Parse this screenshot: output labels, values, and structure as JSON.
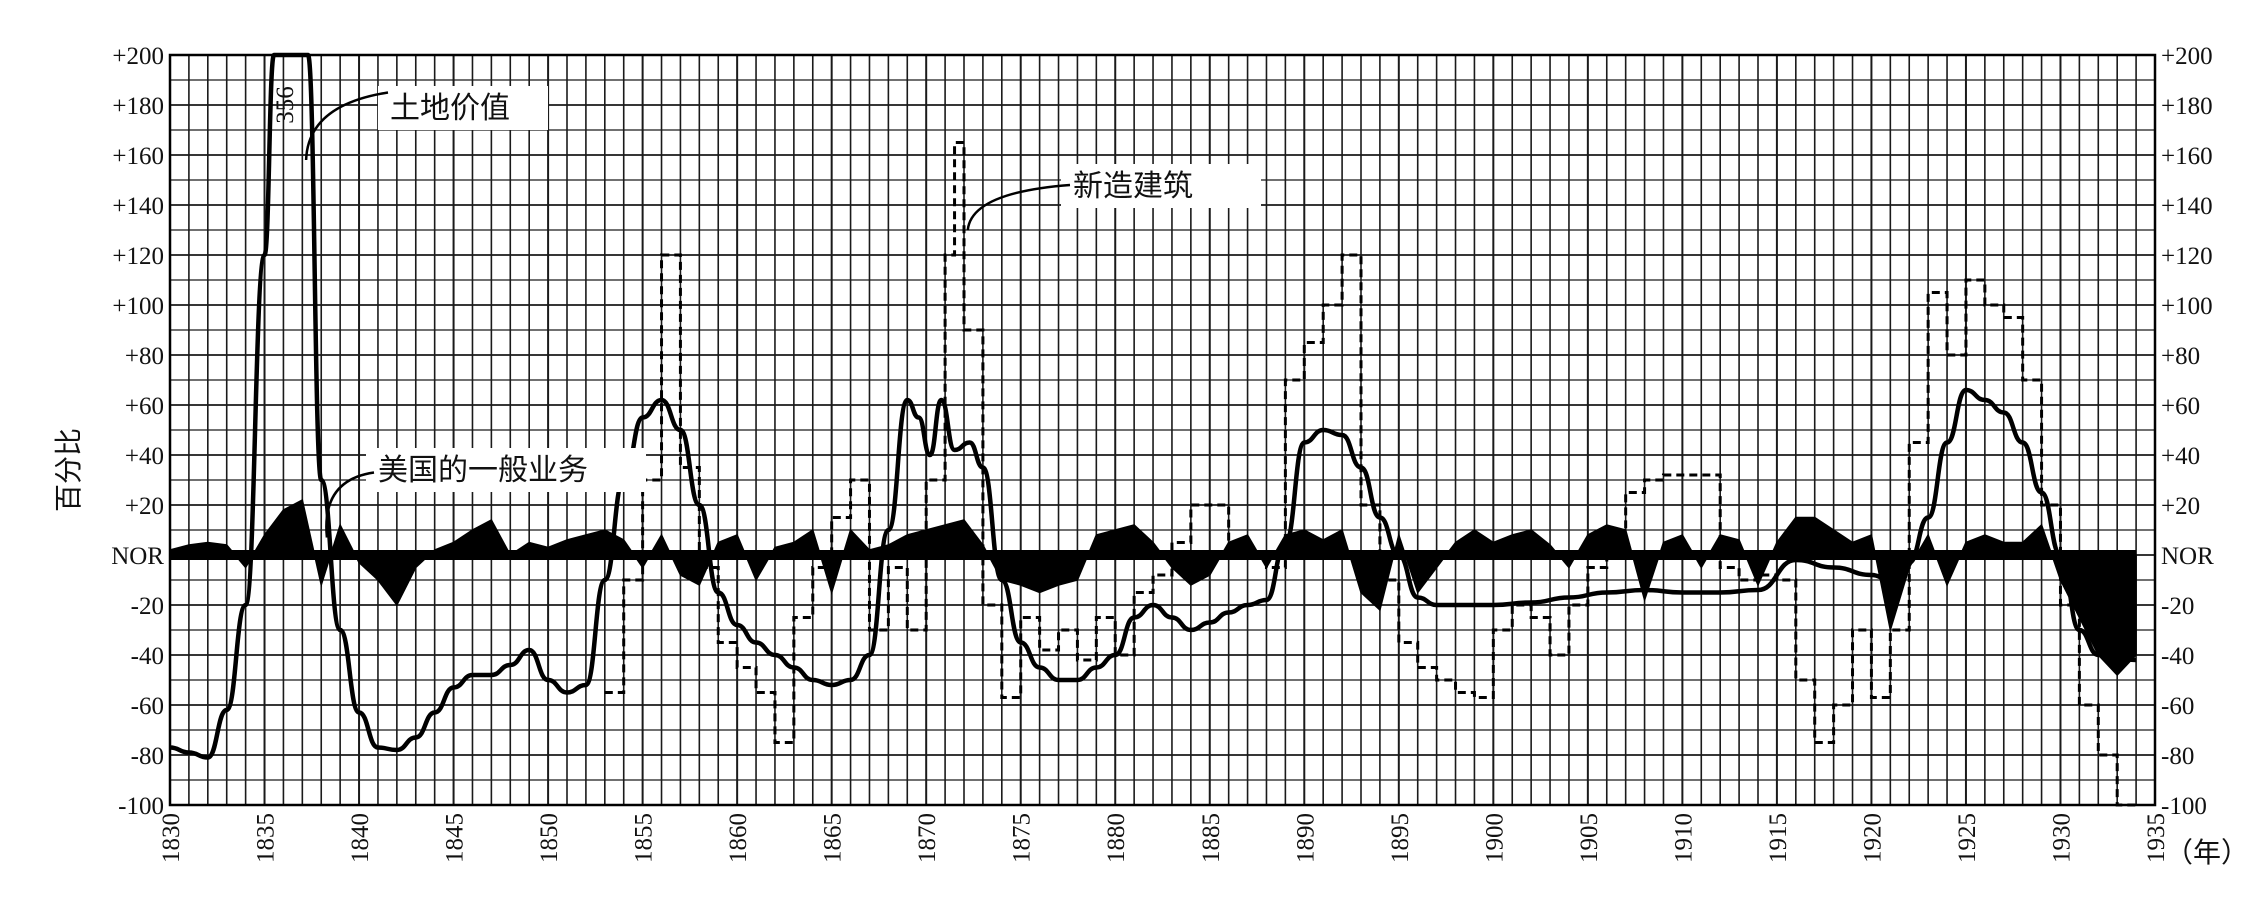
{
  "chart_data": {
    "type": "line",
    "xlabel": "（年）",
    "ylabel": "百分比",
    "xlim": [
      1830,
      1935
    ],
    "ylim": [
      -100,
      200
    ],
    "grid": true,
    "legend": "none",
    "x_ticks": [
      1830,
      1835,
      1840,
      1845,
      1850,
      1855,
      1860,
      1865,
      1870,
      1875,
      1880,
      1885,
      1890,
      1895,
      1900,
      1905,
      1910,
      1915,
      1920,
      1925,
      1930,
      1935
    ],
    "y_ticks": [
      {
        "v": 200,
        "t": "+200"
      },
      {
        "v": 180,
        "t": "+180"
      },
      {
        "v": 160,
        "t": "+160"
      },
      {
        "v": 140,
        "t": "+140"
      },
      {
        "v": 120,
        "t": "+120"
      },
      {
        "v": 100,
        "t": "+100"
      },
      {
        "v": 80,
        "t": "+80"
      },
      {
        "v": 60,
        "t": "+60"
      },
      {
        "v": 40,
        "t": "+40"
      },
      {
        "v": 20,
        "t": "+20"
      },
      {
        "v": 0,
        "t": "NOR"
      },
      {
        "v": -20,
        "t": "-20"
      },
      {
        "v": -40,
        "t": "-40"
      },
      {
        "v": -60,
        "t": "-60"
      },
      {
        "v": -80,
        "t": "-80"
      },
      {
        "v": -100,
        "t": "-100"
      }
    ],
    "annotations": [
      {
        "text": "土地价值",
        "series": "land"
      },
      {
        "text": "新造建筑",
        "series": "construction"
      },
      {
        "text": "美国的一般业务",
        "series": "business"
      }
    ],
    "peak_label": "356",
    "series": [
      {
        "name": "土地价值",
        "style": "solid",
        "points": [
          [
            1830,
            -77
          ],
          [
            1831,
            -79
          ],
          [
            1832,
            -81
          ],
          [
            1833,
            -62
          ],
          [
            1834,
            -20
          ],
          [
            1835,
            120
          ],
          [
            1835.5,
            200
          ],
          [
            1837.3,
            200
          ],
          [
            1838,
            30
          ],
          [
            1839,
            -30
          ],
          [
            1840,
            -63
          ],
          [
            1841,
            -77
          ],
          [
            1842,
            -78
          ],
          [
            1843,
            -73
          ],
          [
            1844,
            -63
          ],
          [
            1845,
            -53
          ],
          [
            1846,
            -48
          ],
          [
            1847,
            -48
          ],
          [
            1848,
            -44
          ],
          [
            1849,
            -38
          ],
          [
            1850,
            -50
          ],
          [
            1851,
            -55
          ],
          [
            1852,
            -52
          ],
          [
            1853,
            -10
          ],
          [
            1854,
            30
          ],
          [
            1855,
            55
          ],
          [
            1856,
            62
          ],
          [
            1857,
            50
          ],
          [
            1858,
            20
          ],
          [
            1859,
            -15
          ],
          [
            1860,
            -28
          ],
          [
            1861,
            -35
          ],
          [
            1862,
            -40
          ],
          [
            1863,
            -45
          ],
          [
            1864,
            -50
          ],
          [
            1865,
            -52
          ],
          [
            1866,
            -50
          ],
          [
            1867,
            -40
          ],
          [
            1868,
            10
          ],
          [
            1869,
            62
          ],
          [
            1869.6,
            55
          ],
          [
            1870.2,
            40
          ],
          [
            1870.8,
            62
          ],
          [
            1871.5,
            42
          ],
          [
            1872.3,
            45
          ],
          [
            1873,
            35
          ],
          [
            1874,
            -10
          ],
          [
            1875,
            -35
          ],
          [
            1876,
            -45
          ],
          [
            1877,
            -50
          ],
          [
            1878,
            -50
          ],
          [
            1879,
            -45
          ],
          [
            1880,
            -40
          ],
          [
            1881,
            -25
          ],
          [
            1882,
            -20
          ],
          [
            1883,
            -25
          ],
          [
            1884,
            -30
          ],
          [
            1885,
            -27
          ],
          [
            1886,
            -23
          ],
          [
            1887,
            -20
          ],
          [
            1888,
            -18
          ],
          [
            1889,
            5
          ],
          [
            1890,
            45
          ],
          [
            1891,
            50
          ],
          [
            1892,
            48
          ],
          [
            1893,
            35
          ],
          [
            1894,
            15
          ],
          [
            1895,
            0
          ],
          [
            1896,
            -17
          ],
          [
            1897,
            -20
          ],
          [
            1898,
            -20
          ],
          [
            1900,
            -20
          ],
          [
            1902,
            -19
          ],
          [
            1904,
            -17
          ],
          [
            1906,
            -15
          ],
          [
            1908,
            -14
          ],
          [
            1910,
            -15
          ],
          [
            1912,
            -15
          ],
          [
            1914,
            -14
          ],
          [
            1916,
            -2
          ],
          [
            1918,
            -5
          ],
          [
            1920,
            -8
          ],
          [
            1921,
            -10
          ],
          [
            1922,
            -3
          ],
          [
            1923,
            15
          ],
          [
            1924,
            45
          ],
          [
            1925,
            66
          ],
          [
            1926,
            62
          ],
          [
            1927,
            57
          ],
          [
            1928,
            45
          ],
          [
            1929,
            25
          ],
          [
            1930,
            0
          ],
          [
            1931,
            -30
          ],
          [
            1932,
            -40
          ],
          [
            1934,
            -42
          ]
        ]
      },
      {
        "name": "新造建筑",
        "style": "dashed-step",
        "points": [
          [
            1853,
            -55
          ],
          [
            1854,
            -10
          ],
          [
            1855,
            30
          ],
          [
            1856,
            120
          ],
          [
            1857,
            35
          ],
          [
            1858,
            -5
          ],
          [
            1859,
            -35
          ],
          [
            1860,
            -45
          ],
          [
            1861,
            -55
          ],
          [
            1862,
            -75
          ],
          [
            1863,
            -25
          ],
          [
            1864,
            -5
          ],
          [
            1865,
            15
          ],
          [
            1866,
            30
          ],
          [
            1867,
            -30
          ],
          [
            1868,
            -5
          ],
          [
            1869,
            -30
          ],
          [
            1870,
            30
          ],
          [
            1871,
            120
          ],
          [
            1871.5,
            165
          ],
          [
            1872,
            90
          ],
          [
            1873,
            -20
          ],
          [
            1874,
            -57
          ],
          [
            1875,
            -25
          ],
          [
            1876,
            -38
          ],
          [
            1877,
            -30
          ],
          [
            1878,
            -42
          ],
          [
            1879,
            -25
          ],
          [
            1880,
            -40
          ],
          [
            1881,
            -15
          ],
          [
            1882,
            -8
          ],
          [
            1883,
            5
          ],
          [
            1884,
            20
          ],
          [
            1886,
            0
          ],
          [
            1888,
            -5
          ],
          [
            1889,
            70
          ],
          [
            1890,
            85
          ],
          [
            1891,
            100
          ],
          [
            1892,
            120
          ],
          [
            1893,
            20
          ],
          [
            1894,
            -10
          ],
          [
            1895,
            -35
          ],
          [
            1896,
            -45
          ],
          [
            1897,
            -50
          ],
          [
            1898,
            -55
          ],
          [
            1899,
            -57
          ],
          [
            1900,
            -30
          ],
          [
            1901,
            -20
          ],
          [
            1902,
            -25
          ],
          [
            1903,
            -40
          ],
          [
            1904,
            -20
          ],
          [
            1905,
            -5
          ],
          [
            1906,
            10
          ],
          [
            1907,
            25
          ],
          [
            1908,
            30
          ],
          [
            1909,
            32
          ],
          [
            1911,
            32
          ],
          [
            1912,
            -5
          ],
          [
            1913,
            -10
          ],
          [
            1914,
            -8
          ],
          [
            1915,
            -10
          ],
          [
            1916,
            -50
          ],
          [
            1917,
            -75
          ],
          [
            1918,
            -60
          ],
          [
            1919,
            -30
          ],
          [
            1920,
            -57
          ],
          [
            1921,
            -30
          ],
          [
            1922,
            45
          ],
          [
            1923,
            105
          ],
          [
            1924,
            80
          ],
          [
            1925,
            110
          ],
          [
            1926,
            100
          ],
          [
            1927,
            95
          ],
          [
            1928,
            70
          ],
          [
            1929,
            20
          ],
          [
            1930,
            -20
          ],
          [
            1931,
            -60
          ],
          [
            1932,
            -80
          ],
          [
            1933,
            -100
          ],
          [
            1934,
            -100
          ]
        ]
      },
      {
        "name": "美国的一般业务",
        "style": "filled",
        "points": [
          [
            1830,
            2
          ],
          [
            1831,
            4
          ],
          [
            1832,
            5
          ],
          [
            1833,
            4
          ],
          [
            1834,
            -5
          ],
          [
            1835,
            8
          ],
          [
            1836,
            18
          ],
          [
            1837,
            22
          ],
          [
            1838,
            -12
          ],
          [
            1839,
            12
          ],
          [
            1840,
            -3
          ],
          [
            1841,
            -10
          ],
          [
            1842,
            -20
          ],
          [
            1843,
            -5
          ],
          [
            1844,
            2
          ],
          [
            1845,
            5
          ],
          [
            1846,
            10
          ],
          [
            1847,
            14
          ],
          [
            1848,
            0
          ],
          [
            1849,
            5
          ],
          [
            1850,
            3
          ],
          [
            1851,
            6
          ],
          [
            1852,
            8
          ],
          [
            1853,
            10
          ],
          [
            1854,
            6
          ],
          [
            1855,
            -5
          ],
          [
            1856,
            8
          ],
          [
            1857,
            -8
          ],
          [
            1858,
            -12
          ],
          [
            1859,
            5
          ],
          [
            1860,
            8
          ],
          [
            1861,
            -10
          ],
          [
            1862,
            3
          ],
          [
            1863,
            5
          ],
          [
            1864,
            10
          ],
          [
            1865,
            -15
          ],
          [
            1866,
            10
          ],
          [
            1867,
            2
          ],
          [
            1868,
            4
          ],
          [
            1869,
            8
          ],
          [
            1870,
            10
          ],
          [
            1871,
            12
          ],
          [
            1872,
            14
          ],
          [
            1873,
            4
          ],
          [
            1874,
            -10
          ],
          [
            1875,
            -12
          ],
          [
            1876,
            -15
          ],
          [
            1877,
            -12
          ],
          [
            1878,
            -10
          ],
          [
            1879,
            8
          ],
          [
            1880,
            10
          ],
          [
            1881,
            12
          ],
          [
            1882,
            5
          ],
          [
            1883,
            -5
          ],
          [
            1884,
            -12
          ],
          [
            1885,
            -8
          ],
          [
            1886,
            5
          ],
          [
            1887,
            8
          ],
          [
            1888,
            -5
          ],
          [
            1889,
            8
          ],
          [
            1890,
            10
          ],
          [
            1891,
            6
          ],
          [
            1892,
            10
          ],
          [
            1893,
            -15
          ],
          [
            1894,
            -22
          ],
          [
            1895,
            8
          ],
          [
            1896,
            -15
          ],
          [
            1897,
            -5
          ],
          [
            1898,
            5
          ],
          [
            1899,
            10
          ],
          [
            1900,
            5
          ],
          [
            1901,
            8
          ],
          [
            1902,
            10
          ],
          [
            1903,
            4
          ],
          [
            1904,
            -5
          ],
          [
            1905,
            8
          ],
          [
            1906,
            12
          ],
          [
            1907,
            10
          ],
          [
            1908,
            -18
          ],
          [
            1909,
            5
          ],
          [
            1910,
            8
          ],
          [
            1911,
            -5
          ],
          [
            1912,
            8
          ],
          [
            1913,
            6
          ],
          [
            1914,
            -12
          ],
          [
            1915,
            5
          ],
          [
            1916,
            15
          ],
          [
            1917,
            15
          ],
          [
            1918,
            10
          ],
          [
            1919,
            5
          ],
          [
            1920,
            8
          ],
          [
            1921,
            -30
          ],
          [
            1922,
            -5
          ],
          [
            1923,
            8
          ],
          [
            1924,
            -12
          ],
          [
            1925,
            5
          ],
          [
            1926,
            8
          ],
          [
            1927,
            5
          ],
          [
            1928,
            5
          ],
          [
            1929,
            12
          ],
          [
            1930,
            -10
          ],
          [
            1931,
            -25
          ],
          [
            1932,
            -40
          ],
          [
            1933,
            -48
          ],
          [
            1934,
            -40
          ]
        ]
      }
    ]
  }
}
